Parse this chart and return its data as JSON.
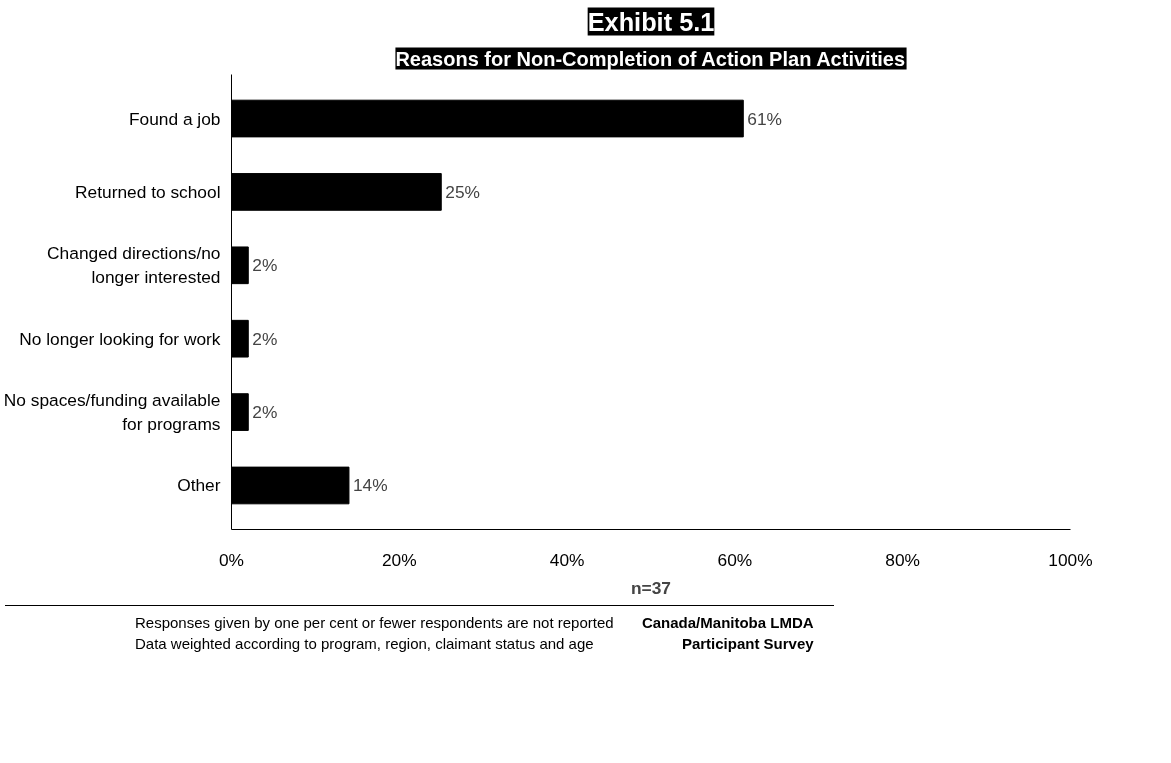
{
  "chart_data": {
    "type": "bar",
    "orientation": "horizontal",
    "title": "Exhibit 5.1",
    "subtitle": "Reasons for Non-Completion of Action Plan Activities",
    "categories": [
      "Found a job",
      "Returned to school",
      "Changed directions/no longer interested",
      "No longer looking for work",
      "No spaces/funding available for programs",
      "Other"
    ],
    "values": [
      61,
      25,
      2,
      2,
      2,
      14
    ],
    "value_labels": [
      "61%",
      "25%",
      "2%",
      "2%",
      "2%",
      "14%"
    ],
    "color": "#000000",
    "xlim": [
      0,
      100
    ],
    "xticks": [
      {
        "value": 0,
        "label": "0%"
      },
      {
        "value": 20,
        "label": "20%"
      },
      {
        "value": 40,
        "label": "40%"
      },
      {
        "value": 60,
        "label": "60%"
      },
      {
        "value": 80,
        "label": "80%"
      },
      {
        "value": 100,
        "label": "100%"
      }
    ],
    "xlabel": "n=37",
    "grid": false,
    "annotations": [
      "Responses given by one per cent or fewer respondents are not reported",
      "Data weighted according to program, region, claimant status and age",
      "Canada/Manitoba LMDA Participant Survey"
    ]
  }
}
